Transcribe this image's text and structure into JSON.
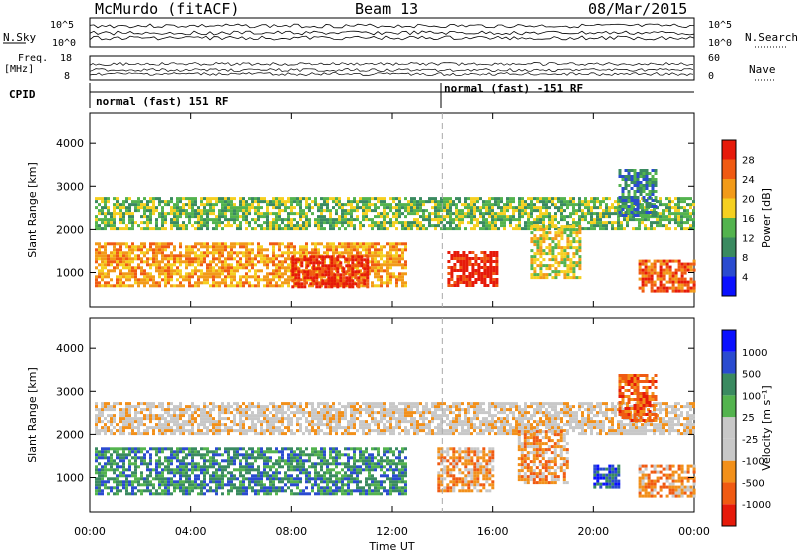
{
  "header": {
    "station": "McMurdo (fitACF)",
    "beam": "Beam 13",
    "date": "08/Mar/2015"
  },
  "top_panel": {
    "left_label": "N.Sky",
    "right_label": "N.Search",
    "left_ticks": [
      "10^5",
      "10^0"
    ],
    "right_ticks": [
      "10^5",
      "10^0"
    ],
    "freq_label_1": "Freq.",
    "freq_label_2": "[MHz]",
    "freq_ticks": [
      "18",
      "8"
    ],
    "nave_label": "Nave",
    "nave_ticks": [
      "60",
      "0"
    ],
    "cpid_label": "CPID",
    "cpid_segments": [
      "normal (fast) 151 RF",
      "normal (fast) -151 RF"
    ]
  },
  "colors": {
    "power": [
      "#0a10ff",
      "#2a4bd0",
      "#3a8a60",
      "#53b34e",
      "#f5d020",
      "#f29a18",
      "#f05a12",
      "#e61a0a"
    ],
    "velocity": [
      "#e61a0a",
      "#f05a12",
      "#f2901a",
      "#c8c8c8",
      "#c8c8c8",
      "#53b34e",
      "#3a8a60",
      "#2a4bd0",
      "#0a10ff"
    ]
  },
  "chart_data": [
    {
      "type": "heatmap",
      "name": "power",
      "ylabel": "Slant Range [km]",
      "yticks": [
        1000,
        2000,
        3000,
        4000
      ],
      "ylim": [
        200,
        4700
      ],
      "xticks": [
        "00:00",
        "04:00",
        "08:00",
        "12:00",
        "16:00",
        "20:00",
        "00:00"
      ],
      "colorbar_label": "Power [dB]",
      "colorbar_ticks": [
        "4",
        "8",
        "12",
        "16",
        "20",
        "24",
        "28"
      ],
      "bands": [
        {
          "t0": 0.2,
          "t1": 24.0,
          "r0": 2050,
          "r1": 2750,
          "level": 3
        },
        {
          "t0": 0.2,
          "t1": 12.5,
          "r0": 700,
          "r1": 1700,
          "level": 5
        },
        {
          "t0": 8.0,
          "t1": 11.0,
          "r0": 700,
          "r1": 1400,
          "level": 7
        },
        {
          "t0": 14.2,
          "t1": 16.2,
          "r0": 700,
          "r1": 1500,
          "level": 7
        },
        {
          "t0": 17.5,
          "t1": 19.5,
          "r0": 900,
          "r1": 2100,
          "level": 4
        },
        {
          "t0": 21.0,
          "t1": 22.5,
          "r0": 2300,
          "r1": 3400,
          "level": 2
        },
        {
          "t0": 21.8,
          "t1": 24.0,
          "r0": 600,
          "r1": 1300,
          "level": 6
        }
      ]
    },
    {
      "type": "heatmap",
      "name": "velocity",
      "ylabel": "Slant Range [km]",
      "yticks": [
        1000,
        2000,
        3000,
        4000
      ],
      "ylim": [
        200,
        4700
      ],
      "xticks": [
        "00:00",
        "04:00",
        "08:00",
        "12:00",
        "16:00",
        "20:00",
        "00:00"
      ],
      "xlabel": "Time UT",
      "colorbar_label": "Velocity [m s⁻¹]",
      "colorbar_ticks": [
        "1000",
        "500",
        "100",
        "25",
        "-25",
        "-100",
        "-500",
        "-1000"
      ],
      "bands": [
        {
          "t0": 0.2,
          "t1": 24.0,
          "r0": 2050,
          "r1": 2750,
          "level": 3
        },
        {
          "t0": 0.2,
          "t1": 12.5,
          "r0": 600,
          "r1": 1700,
          "level": 6
        },
        {
          "t0": 13.8,
          "t1": 16.0,
          "r0": 700,
          "r1": 1700,
          "level": 2
        },
        {
          "t0": 17.0,
          "t1": 19.0,
          "r0": 900,
          "r1": 2100,
          "level": 2
        },
        {
          "t0": 20.0,
          "t1": 21.0,
          "r0": 800,
          "r1": 1300,
          "level": 7
        },
        {
          "t0": 21.0,
          "t1": 22.5,
          "r0": 2300,
          "r1": 3400,
          "level": 1
        },
        {
          "t0": 21.8,
          "t1": 24.0,
          "r0": 600,
          "r1": 1300,
          "level": 2
        }
      ]
    }
  ]
}
